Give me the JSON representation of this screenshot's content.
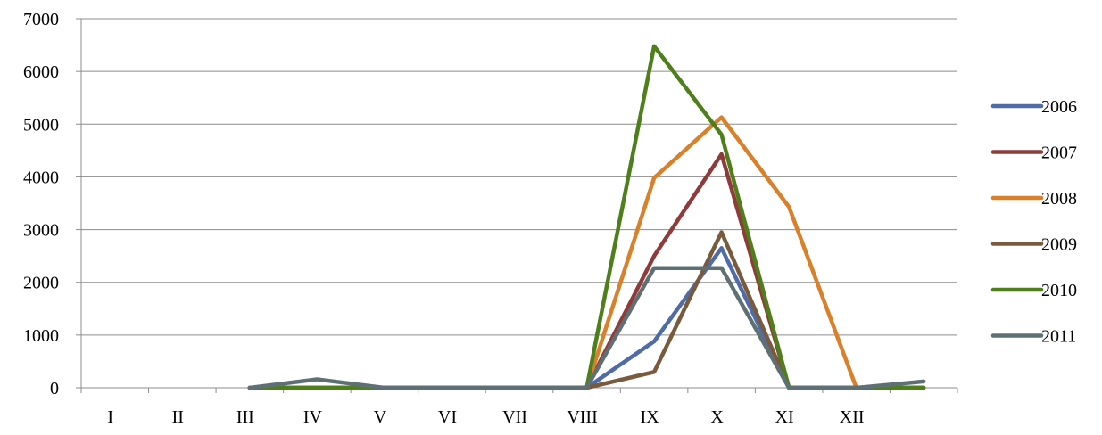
{
  "chart_data": {
    "type": "line",
    "title": "",
    "xlabel": "",
    "ylabel": "",
    "categories": [
      "I",
      "II",
      "III",
      "IV",
      "V",
      "VI",
      "VII",
      "VIII",
      "IX",
      "X",
      "XI",
      "XII",
      ""
    ],
    "ylim": [
      0,
      7000
    ],
    "yticks": [
      "0",
      "1000",
      "2000",
      "3000",
      "4000",
      "5000",
      "6000",
      "7000"
    ],
    "grid": true,
    "legend_position": "right",
    "series": [
      {
        "name": "2006",
        "color": "#4F6BA8",
        "values": [
          null,
          null,
          0,
          0,
          0,
          0,
          0,
          0,
          880,
          2650,
          0,
          0,
          0
        ]
      },
      {
        "name": "2007",
        "color": "#8E3B3A",
        "values": [
          null,
          null,
          0,
          0,
          0,
          0,
          0,
          0,
          2500,
          4430,
          0,
          0,
          0
        ]
      },
      {
        "name": "2008",
        "color": "#D9802A",
        "values": [
          null,
          null,
          0,
          0,
          0,
          0,
          0,
          0,
          3980,
          5130,
          3430,
          0,
          0
        ]
      },
      {
        "name": "2009",
        "color": "#7A5A3C",
        "values": [
          null,
          null,
          0,
          0,
          0,
          0,
          0,
          0,
          300,
          2950,
          0,
          0,
          0
        ]
      },
      {
        "name": "2010",
        "color": "#4E7F1A",
        "values": [
          null,
          null,
          0,
          0,
          0,
          0,
          0,
          0,
          6480,
          4800,
          0,
          0,
          0
        ]
      },
      {
        "name": "2011",
        "color": "#5F7075",
        "values": [
          null,
          null,
          0,
          160,
          0,
          0,
          0,
          0,
          2270,
          2270,
          0,
          0,
          120
        ]
      }
    ]
  }
}
